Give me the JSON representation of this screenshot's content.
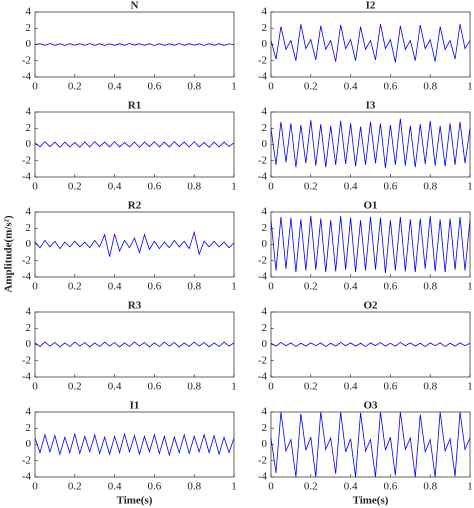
{
  "chart_data": [
    {
      "type": "line",
      "title": "N",
      "x": [
        0,
        0.025,
        0.05,
        0.075,
        0.1,
        0.125,
        0.15,
        0.175,
        0.2,
        0.225,
        0.25,
        0.275,
        0.3,
        0.325,
        0.35,
        0.375,
        0.4,
        0.425,
        0.45,
        0.475,
        0.5,
        0.525,
        0.55,
        0.575,
        0.6,
        0.625,
        0.65,
        0.675,
        0.7,
        0.725,
        0.75,
        0.775,
        0.8,
        0.825,
        0.85,
        0.875,
        0.9,
        0.925,
        0.95,
        0.975,
        1
      ],
      "values": [
        0,
        0.1,
        -0.1,
        0.12,
        -0.1,
        0.08,
        -0.12,
        0.1,
        -0.08,
        0.1,
        -0.1,
        0.12,
        -0.1,
        0.1,
        -0.12,
        0.08,
        -0.1,
        0.1,
        -0.1,
        0.12,
        -0.08,
        0.1,
        -0.1,
        0.1,
        -0.12,
        0.1,
        -0.1,
        0.08,
        -0.1,
        0.12,
        -0.1,
        0.1,
        -0.08,
        0.1,
        -0.12,
        0.1,
        -0.1,
        0.1,
        -0.1,
        0.08,
        0
      ],
      "color": "#0000ff",
      "xlim": [
        0,
        1
      ],
      "ylim": [
        -4,
        4
      ],
      "xticks": [
        0,
        0.2,
        0.4,
        0.6,
        0.8,
        1
      ],
      "yticks": [
        -4,
        -2,
        0,
        2,
        4
      ]
    },
    {
      "type": "line",
      "title": "R1",
      "x": [
        0,
        0.025,
        0.05,
        0.075,
        0.1,
        0.125,
        0.15,
        0.175,
        0.2,
        0.225,
        0.25,
        0.275,
        0.3,
        0.325,
        0.35,
        0.375,
        0.4,
        0.425,
        0.45,
        0.475,
        0.5,
        0.525,
        0.55,
        0.575,
        0.6,
        0.625,
        0.65,
        0.675,
        0.7,
        0.725,
        0.75,
        0.775,
        0.8,
        0.825,
        0.85,
        0.875,
        0.9,
        0.925,
        0.95,
        0.975,
        1
      ],
      "values": [
        0.2,
        -0.3,
        0.35,
        -0.25,
        0.3,
        -0.35,
        0.3,
        -0.3,
        0.25,
        -0.35,
        0.3,
        -0.3,
        0.35,
        -0.25,
        0.3,
        -0.3,
        0.35,
        -0.3,
        0.25,
        -0.3,
        0.3,
        -0.35,
        0.3,
        -0.25,
        0.35,
        -0.3,
        0.3,
        -0.3,
        0.35,
        -0.25,
        0.3,
        -0.3,
        0.35,
        -0.3,
        0.25,
        -0.35,
        0.3,
        -0.3,
        0.3,
        -0.25,
        0.2
      ],
      "color": "#0000ff",
      "xlim": [
        0,
        1
      ],
      "ylim": [
        -4,
        4
      ],
      "xticks": [
        0,
        0.2,
        0.4,
        0.6,
        0.8,
        1
      ],
      "yticks": [
        -4,
        -2,
        0,
        2,
        4
      ]
    },
    {
      "type": "line",
      "title": "R2",
      "ylabel": "Amplitude(m/s²)",
      "x": [
        0,
        0.025,
        0.05,
        0.075,
        0.1,
        0.125,
        0.15,
        0.175,
        0.2,
        0.225,
        0.25,
        0.275,
        0.3,
        0.325,
        0.35,
        0.375,
        0.4,
        0.425,
        0.45,
        0.475,
        0.5,
        0.525,
        0.55,
        0.575,
        0.6,
        0.625,
        0.65,
        0.675,
        0.7,
        0.725,
        0.75,
        0.775,
        0.8,
        0.825,
        0.85,
        0.875,
        0.9,
        0.925,
        0.95,
        0.975,
        1
      ],
      "values": [
        0.3,
        -0.4,
        0.5,
        -0.3,
        0.4,
        -0.5,
        0.3,
        -0.3,
        0.4,
        -0.3,
        0.3,
        -0.4,
        0.5,
        -0.3,
        1.2,
        -1.5,
        1.3,
        -0.8,
        0.5,
        -0.4,
        0.8,
        -1.0,
        1.2,
        -0.6,
        0.4,
        -0.5,
        0.3,
        -0.4,
        0.5,
        -0.3,
        0.4,
        -0.5,
        1.5,
        -1.2,
        0.4,
        -0.3,
        0.4,
        -0.3,
        0.3,
        -0.4,
        0.2
      ],
      "color": "#0000ff",
      "xlim": [
        0,
        1
      ],
      "ylim": [
        -4,
        4
      ],
      "xticks": [
        0,
        0.2,
        0.4,
        0.6,
        0.8,
        1
      ],
      "yticks": [
        -4,
        -2,
        0,
        2,
        4
      ]
    },
    {
      "type": "line",
      "title": "R3",
      "x": [
        0,
        0.025,
        0.05,
        0.075,
        0.1,
        0.125,
        0.15,
        0.175,
        0.2,
        0.225,
        0.25,
        0.275,
        0.3,
        0.325,
        0.35,
        0.375,
        0.4,
        0.425,
        0.45,
        0.475,
        0.5,
        0.525,
        0.55,
        0.575,
        0.6,
        0.625,
        0.65,
        0.675,
        0.7,
        0.725,
        0.75,
        0.775,
        0.8,
        0.825,
        0.85,
        0.875,
        0.9,
        0.925,
        0.95,
        0.975,
        1
      ],
      "values": [
        0.2,
        -0.25,
        0.3,
        -0.2,
        0.25,
        -0.3,
        0.2,
        -0.25,
        0.3,
        -0.2,
        0.25,
        -0.3,
        0.2,
        -0.25,
        0.3,
        -0.2,
        0.25,
        -0.3,
        0.2,
        -0.25,
        0.3,
        -0.2,
        0.25,
        -0.3,
        0.2,
        -0.25,
        0.3,
        -0.2,
        0.25,
        -0.3,
        0.2,
        -0.25,
        0.3,
        -0.2,
        0.25,
        -0.3,
        0.2,
        -0.25,
        0.3,
        -0.2,
        0.2
      ],
      "color": "#0000ff",
      "xlim": [
        0,
        1
      ],
      "ylim": [
        -4,
        4
      ],
      "xticks": [
        0,
        0.2,
        0.4,
        0.6,
        0.8,
        1
      ],
      "yticks": [
        -4,
        -2,
        0,
        2,
        4
      ]
    },
    {
      "type": "line",
      "title": "I1",
      "xlabel": "Time(s)",
      "x": [
        0,
        0.025,
        0.05,
        0.075,
        0.1,
        0.125,
        0.15,
        0.175,
        0.2,
        0.225,
        0.25,
        0.275,
        0.3,
        0.325,
        0.35,
        0.375,
        0.4,
        0.425,
        0.45,
        0.475,
        0.5,
        0.525,
        0.55,
        0.575,
        0.6,
        0.625,
        0.65,
        0.675,
        0.7,
        0.725,
        0.75,
        0.775,
        0.8,
        0.825,
        0.85,
        0.875,
        0.9,
        0.925,
        0.95,
        0.975,
        1
      ],
      "values": [
        0.8,
        -1.0,
        1.2,
        -0.9,
        1.1,
        -1.2,
        0.9,
        -1.0,
        1.3,
        -1.1,
        1.0,
        -0.9,
        1.2,
        -1.1,
        0.9,
        -1.2,
        1.0,
        -1.0,
        1.3,
        -0.9,
        1.1,
        -1.2,
        1.0,
        -0.9,
        1.2,
        -1.1,
        1.0,
        -1.3,
        0.9,
        -1.0,
        1.2,
        -1.1,
        1.0,
        -0.9,
        1.2,
        -1.0,
        1.1,
        -1.2,
        0.9,
        -1.0,
        0.8
      ],
      "color": "#0000ff",
      "xlim": [
        0,
        1
      ],
      "ylim": [
        -4,
        4
      ],
      "xticks": [
        0,
        0.2,
        0.4,
        0.6,
        0.8,
        1
      ],
      "yticks": [
        -4,
        -2,
        0,
        2,
        4
      ]
    },
    {
      "type": "line",
      "title": "I2",
      "x": [
        0,
        0.025,
        0.05,
        0.075,
        0.1,
        0.125,
        0.15,
        0.175,
        0.2,
        0.225,
        0.25,
        0.275,
        0.3,
        0.325,
        0.35,
        0.375,
        0.4,
        0.425,
        0.45,
        0.475,
        0.5,
        0.525,
        0.55,
        0.575,
        0.6,
        0.625,
        0.65,
        0.675,
        0.7,
        0.725,
        0.75,
        0.775,
        0.8,
        0.825,
        0.85,
        0.875,
        0.9,
        0.925,
        0.95,
        0.975,
        1
      ],
      "values": [
        0.5,
        -1.8,
        2.2,
        -0.6,
        0.5,
        -2.0,
        2.5,
        -0.5,
        0.6,
        -1.9,
        2.3,
        -0.6,
        0.5,
        -2.1,
        2.4,
        -0.5,
        0.6,
        -2.0,
        2.2,
        -0.6,
        0.5,
        -1.9,
        2.5,
        -0.5,
        0.6,
        -2.2,
        2.3,
        -0.6,
        0.5,
        -2.0,
        2.4,
        -0.5,
        0.6,
        -2.1,
        2.2,
        -0.6,
        0.5,
        -1.8,
        2.5,
        -0.5,
        0.5
      ],
      "color": "#0000ff",
      "xlim": [
        0,
        1
      ],
      "ylim": [
        -4,
        4
      ],
      "xticks": [
        0,
        0.2,
        0.4,
        0.6,
        0.8,
        1
      ],
      "yticks": [
        -4,
        -2,
        0,
        2,
        4
      ]
    },
    {
      "type": "line",
      "title": "I3",
      "x": [
        0,
        0.025,
        0.05,
        0.075,
        0.1,
        0.125,
        0.15,
        0.175,
        0.2,
        0.225,
        0.25,
        0.275,
        0.3,
        0.325,
        0.35,
        0.375,
        0.4,
        0.425,
        0.45,
        0.475,
        0.5,
        0.525,
        0.55,
        0.575,
        0.6,
        0.625,
        0.65,
        0.675,
        0.7,
        0.725,
        0.75,
        0.775,
        0.8,
        0.825,
        0.85,
        0.875,
        0.9,
        0.925,
        0.95,
        0.975,
        1
      ],
      "values": [
        2.0,
        -2.5,
        2.8,
        -2.2,
        2.6,
        -2.8,
        2.4,
        -2.3,
        3.0,
        -2.6,
        2.5,
        -2.8,
        2.3,
        -2.5,
        2.9,
        -2.4,
        2.6,
        -2.7,
        2.2,
        -2.5,
        2.8,
        -2.3,
        2.6,
        -2.9,
        2.4,
        -2.5,
        3.2,
        -2.6,
        2.3,
        -2.8,
        2.5,
        -2.4,
        2.9,
        -2.6,
        2.3,
        -2.7,
        2.6,
        -2.5,
        2.8,
        -2.3,
        2.0
      ],
      "color": "#0000ff",
      "xlim": [
        0,
        1
      ],
      "ylim": [
        -4,
        4
      ],
      "xticks": [
        0,
        0.2,
        0.4,
        0.6,
        0.8,
        1
      ],
      "yticks": [
        -4,
        -2,
        0,
        2,
        4
      ]
    },
    {
      "type": "line",
      "title": "O1",
      "x": [
        0,
        0.025,
        0.05,
        0.075,
        0.1,
        0.125,
        0.15,
        0.175,
        0.2,
        0.225,
        0.25,
        0.275,
        0.3,
        0.325,
        0.35,
        0.375,
        0.4,
        0.425,
        0.45,
        0.475,
        0.5,
        0.525,
        0.55,
        0.575,
        0.6,
        0.625,
        0.65,
        0.675,
        0.7,
        0.725,
        0.75,
        0.775,
        0.8,
        0.825,
        0.85,
        0.875,
        0.9,
        0.925,
        0.95,
        0.975,
        1
      ],
      "values": [
        3.0,
        -3.2,
        3.4,
        -3.0,
        3.3,
        -3.4,
        3.1,
        -3.2,
        3.5,
        -3.1,
        3.2,
        -3.4,
        3.0,
        -3.3,
        3.5,
        -3.1,
        3.3,
        -3.4,
        3.0,
        -3.2,
        3.4,
        -3.1,
        3.3,
        -3.5,
        3.0,
        -3.2,
        3.4,
        -3.3,
        3.1,
        -3.4,
        3.2,
        -3.0,
        3.5,
        -3.3,
        3.1,
        -3.4,
        3.2,
        -3.1,
        3.4,
        -3.2,
        3.0
      ],
      "color": "#0000ff",
      "xlim": [
        0,
        1
      ],
      "ylim": [
        -4,
        4
      ],
      "xticks": [
        0,
        0.2,
        0.4,
        0.6,
        0.8,
        1
      ],
      "yticks": [
        -4,
        -2,
        0,
        2,
        4
      ]
    },
    {
      "type": "line",
      "title": "O2",
      "x": [
        0,
        0.025,
        0.05,
        0.075,
        0.1,
        0.125,
        0.15,
        0.175,
        0.2,
        0.225,
        0.25,
        0.275,
        0.3,
        0.325,
        0.35,
        0.375,
        0.4,
        0.425,
        0.45,
        0.475,
        0.5,
        0.525,
        0.55,
        0.575,
        0.6,
        0.625,
        0.65,
        0.675,
        0.7,
        0.725,
        0.75,
        0.775,
        0.8,
        0.825,
        0.85,
        0.875,
        0.9,
        0.925,
        0.95,
        0.975,
        1
      ],
      "values": [
        0.15,
        -0.2,
        0.25,
        -0.15,
        0.2,
        -0.25,
        0.15,
        -0.2,
        0.2,
        -0.15,
        0.2,
        -0.25,
        0.15,
        -0.2,
        0.25,
        -0.15,
        0.2,
        -0.2,
        0.15,
        -0.25,
        0.2,
        -0.15,
        0.25,
        -0.2,
        0.15,
        -0.2,
        0.25,
        -0.15,
        0.2,
        -0.2,
        0.15,
        -0.25,
        0.2,
        -0.15,
        0.2,
        -0.25,
        0.15,
        -0.2,
        0.2,
        -0.15,
        0.15
      ],
      "color": "#0000ff",
      "xlim": [
        0,
        1
      ],
      "ylim": [
        -4,
        4
      ],
      "xticks": [
        0,
        0.2,
        0.4,
        0.6,
        0.8,
        1
      ],
      "yticks": [
        -4,
        -2,
        0,
        2,
        4
      ]
    },
    {
      "type": "line",
      "title": "O3",
      "xlabel": "Time(s)",
      "x": [
        0,
        0.025,
        0.05,
        0.075,
        0.1,
        0.125,
        0.15,
        0.175,
        0.2,
        0.225,
        0.25,
        0.275,
        0.3,
        0.325,
        0.35,
        0.375,
        0.4,
        0.425,
        0.45,
        0.475,
        0.5,
        0.525,
        0.55,
        0.575,
        0.6,
        0.625,
        0.65,
        0.675,
        0.7,
        0.725,
        0.75,
        0.775,
        0.8,
        0.825,
        0.85,
        0.875,
        0.9,
        0.925,
        0.95,
        0.975,
        1
      ],
      "values": [
        0.8,
        -3.5,
        4,
        -0.8,
        0.6,
        -4,
        3.8,
        -0.7,
        0.9,
        -4,
        4,
        -0.6,
        0.8,
        -3.6,
        4,
        -0.9,
        0.7,
        -4,
        3.9,
        -0.8,
        0.6,
        -4,
        4,
        -0.7,
        0.9,
        -3.8,
        4,
        -0.6,
        0.8,
        -4,
        3.7,
        -0.9,
        0.6,
        -4,
        4,
        -0.8,
        0.7,
        -3.9,
        4,
        -0.6,
        0.8
      ],
      "color": "#0000ff",
      "xlim": [
        0,
        1
      ],
      "ylim": [
        -4,
        4
      ],
      "xticks": [
        0,
        0.2,
        0.4,
        0.6,
        0.8,
        1
      ],
      "yticks": [
        -4,
        -2,
        0,
        2,
        4
      ]
    }
  ]
}
